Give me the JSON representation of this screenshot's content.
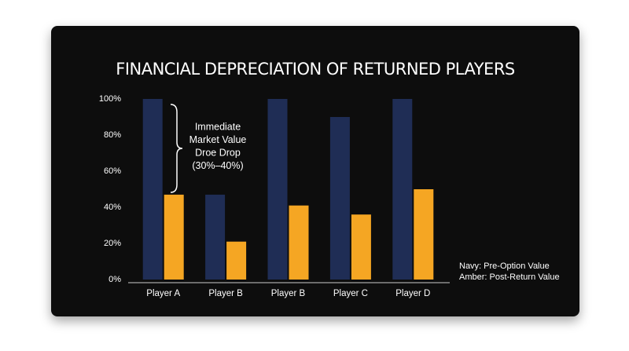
{
  "chart_data": {
    "type": "bar",
    "title": "FINANCIAL DEPRECIATION OF RETURNED PLAYERS",
    "categories": [
      "Player A",
      "Player B",
      "Player B",
      "Player C",
      "Player D"
    ],
    "series": [
      {
        "color": "#1f2d55",
        "values": [
          100,
          47,
          100,
          90,
          100
        ]
      },
      {
        "color": "#f5a623",
        "values": [
          47,
          21,
          41,
          36,
          50
        ]
      }
    ],
    "ylim": [
      0,
      100
    ],
    "yticks": [
      {
        "value": 0,
        "label": "0%"
      },
      {
        "value": 20,
        "label": "20%"
      },
      {
        "value": 40,
        "label": "40%"
      },
      {
        "value": 60,
        "label": "60%"
      },
      {
        "value": 80,
        "label": "80%"
      },
      {
        "value": 100,
        "label": "100%"
      }
    ],
    "annotation": [
      "Immediate",
      "Market Value",
      "Droe Drop",
      "(30%–40%)"
    ],
    "notes": [
      "Navy: Pre-Option Value",
      "Amber: Post-Return Value"
    ]
  }
}
